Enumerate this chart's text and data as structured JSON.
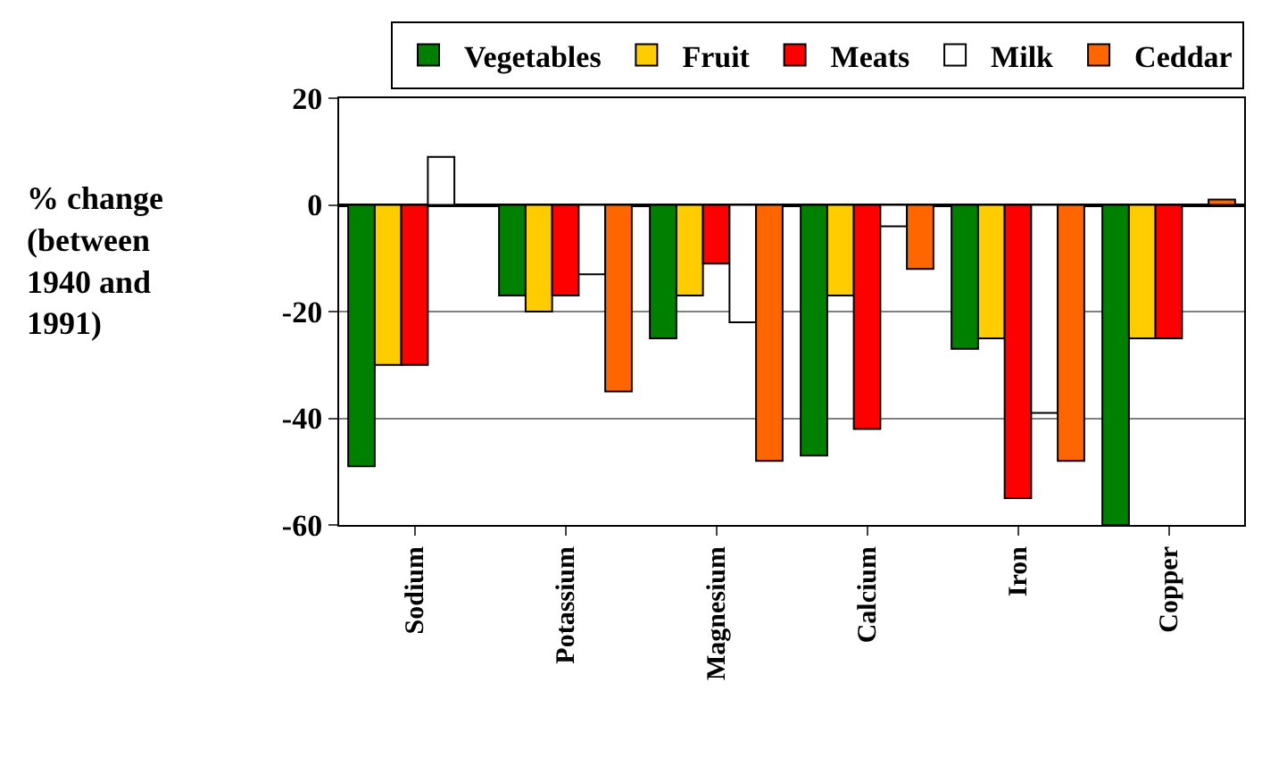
{
  "chart_data": {
    "type": "bar",
    "ylabel": "% change\n(between\n1940 and\n1991)",
    "categories": [
      "Sodium",
      "Potassium",
      "Magnesium",
      "Calcium",
      "Iron",
      "Copper"
    ],
    "series": [
      {
        "name": "Vegetables",
        "color": "#008000",
        "values": [
          -49,
          -17,
          -25,
          -47,
          -27,
          -60
        ]
      },
      {
        "name": "Fruit",
        "color": "#ffcc00",
        "values": [
          -30,
          -20,
          -17,
          -17,
          -25,
          -25
        ]
      },
      {
        "name": "Meats",
        "color": "#ff0000",
        "values": [
          -30,
          -17,
          -11,
          -42,
          -55,
          -25
        ]
      },
      {
        "name": "Milk",
        "color": "#ffffff",
        "values": [
          9,
          -13,
          -22,
          -4,
          -39,
          null
        ]
      },
      {
        "name": "Ceddar",
        "color": "#ff6600",
        "values": [
          null,
          -35,
          -48,
          -12,
          -48,
          1
        ]
      }
    ],
    "ylim": [
      -60,
      20
    ],
    "yticks": [
      -60,
      -40,
      -20,
      0,
      20
    ],
    "grid": "y",
    "legend": "top"
  }
}
